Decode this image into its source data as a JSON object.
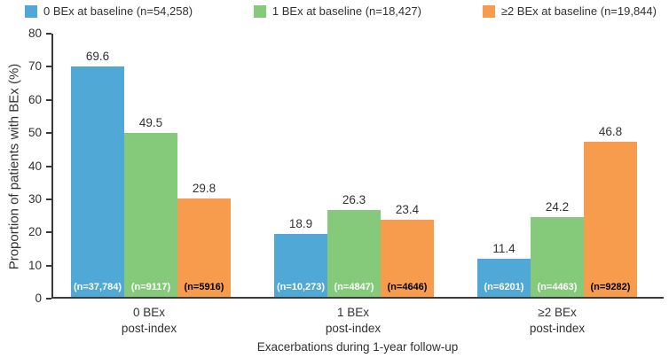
{
  "chart_data": {
    "type": "bar",
    "title": "",
    "ylabel": "Proportion of patients with BEx (%)",
    "xlabel": "Exacerbations during 1-year follow-up",
    "ylim": [
      0,
      80
    ],
    "yticks": [
      0,
      10,
      20,
      30,
      40,
      50,
      60,
      70,
      80
    ],
    "grid": false,
    "legend_position": "top",
    "categories": [
      {
        "line1": "0 BEx",
        "line2": "post-index"
      },
      {
        "line1": "1 BEx",
        "line2": "post-index"
      },
      {
        "line1": "≥2 BEx",
        "line2": "post-index"
      }
    ],
    "series": [
      {
        "name": "0 BEx at baseline (n=54,258)",
        "color": "#4FA8D5",
        "values": [
          69.6,
          18.9,
          11.4
        ],
        "bar_labels": [
          "(n=37,784)",
          "(n=10,273)",
          "(n=6201)"
        ],
        "bar_label_color": "#ffffff"
      },
      {
        "name": "1 BEx at baseline (n=18,427)",
        "color": "#85C97A",
        "values": [
          49.5,
          26.3,
          24.2
        ],
        "bar_labels": [
          "(n=9117)",
          "(n=4847)",
          "(n=4463)"
        ],
        "bar_label_color": "#ffffff"
      },
      {
        "name": "≥2 BEx at baseline (n=19,844)",
        "color": "#F79C4D",
        "values": [
          29.8,
          23.4,
          46.8
        ],
        "bar_labels": [
          "(n=5916)",
          "(n=4646)",
          "(n=9282)"
        ],
        "bar_label_color": "#000000"
      }
    ],
    "axis_color": "#3a3a3a",
    "text_color": "#323232"
  }
}
